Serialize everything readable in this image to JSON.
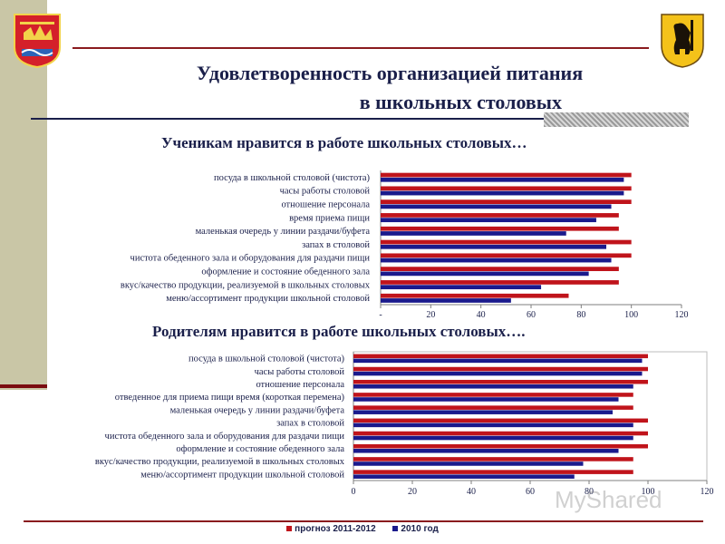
{
  "header": {
    "title_line1": "Удовлетворенность организацией питания",
    "title_line2": "в школьных столовых"
  },
  "watermark": "MyShared",
  "colors": {
    "prognoz": "#c0141b",
    "year2010": "#1a1a8c",
    "accent_dark": "#1a1f4a",
    "band": "#c9c6a6"
  },
  "icons": {
    "left_emblem": "coat-of-arms-icon",
    "right_emblem": "bear-coat-of-arms-icon"
  },
  "legend": {
    "items": [
      {
        "label": "прогноз 2011-2012"
      },
      {
        "label": "2010 год"
      }
    ]
  },
  "chart_data": [
    {
      "type": "bar",
      "orientation": "horizontal",
      "title": "Ученикам нравится в работе школьных столовых…",
      "categories": [
        "посуда в школьной столовой (чистота)",
        "часы работы столовой",
        "отношение персонала",
        "время приема пищи",
        "маленькая очередь у линии раздачи/буфета",
        "запах в столовой",
        "чистота обеденного зала и оборудования для раздачи пищи",
        "оформление и состояние обеденного зала",
        "вкус/качество продукции, реализуемой в школьных столовых",
        "меню/ассортимент продукции школьной столовой"
      ],
      "series": [
        {
          "name": "прогноз 2011-2012",
          "values": [
            100,
            100,
            100,
            95,
            95,
            100,
            100,
            95,
            95,
            75
          ]
        },
        {
          "name": "2010 год",
          "values": [
            97,
            97,
            92,
            86,
            74,
            90,
            92,
            83,
            64,
            52
          ]
        }
      ],
      "xticks": [
        "-",
        "20",
        "40",
        "60",
        "80",
        "100",
        "120"
      ],
      "xlim": [
        0,
        120
      ]
    },
    {
      "type": "bar",
      "orientation": "horizontal",
      "title": "Родителям нравится в работе школьных столовых….",
      "categories": [
        "посуда в школьной столовой (чистота)",
        "часы работы столовой",
        "отношение персонала",
        "отведенное для приема пищи время (короткая перемена)",
        "маленькая  очередь у линии раздачи/буфета",
        "запах в столовой",
        "чистота обеденного зала и оборудования для раздачи пищи",
        "оформление и состояние обеденного зала",
        "вкус/качество продукции, реализуемой в школьных столовых",
        "меню/ассортимент продукции школьной столовой"
      ],
      "series": [
        {
          "name": "прогноз 2011-2012",
          "values": [
            100,
            100,
            100,
            95,
            95,
            100,
            100,
            100,
            95,
            95
          ]
        },
        {
          "name": "2010 год",
          "values": [
            98,
            98,
            95,
            90,
            88,
            95,
            95,
            90,
            78,
            75
          ]
        }
      ],
      "xticks": [
        "0",
        "20",
        "40",
        "60",
        "80",
        "100",
        "120"
      ],
      "xlim": [
        0,
        120
      ]
    }
  ]
}
